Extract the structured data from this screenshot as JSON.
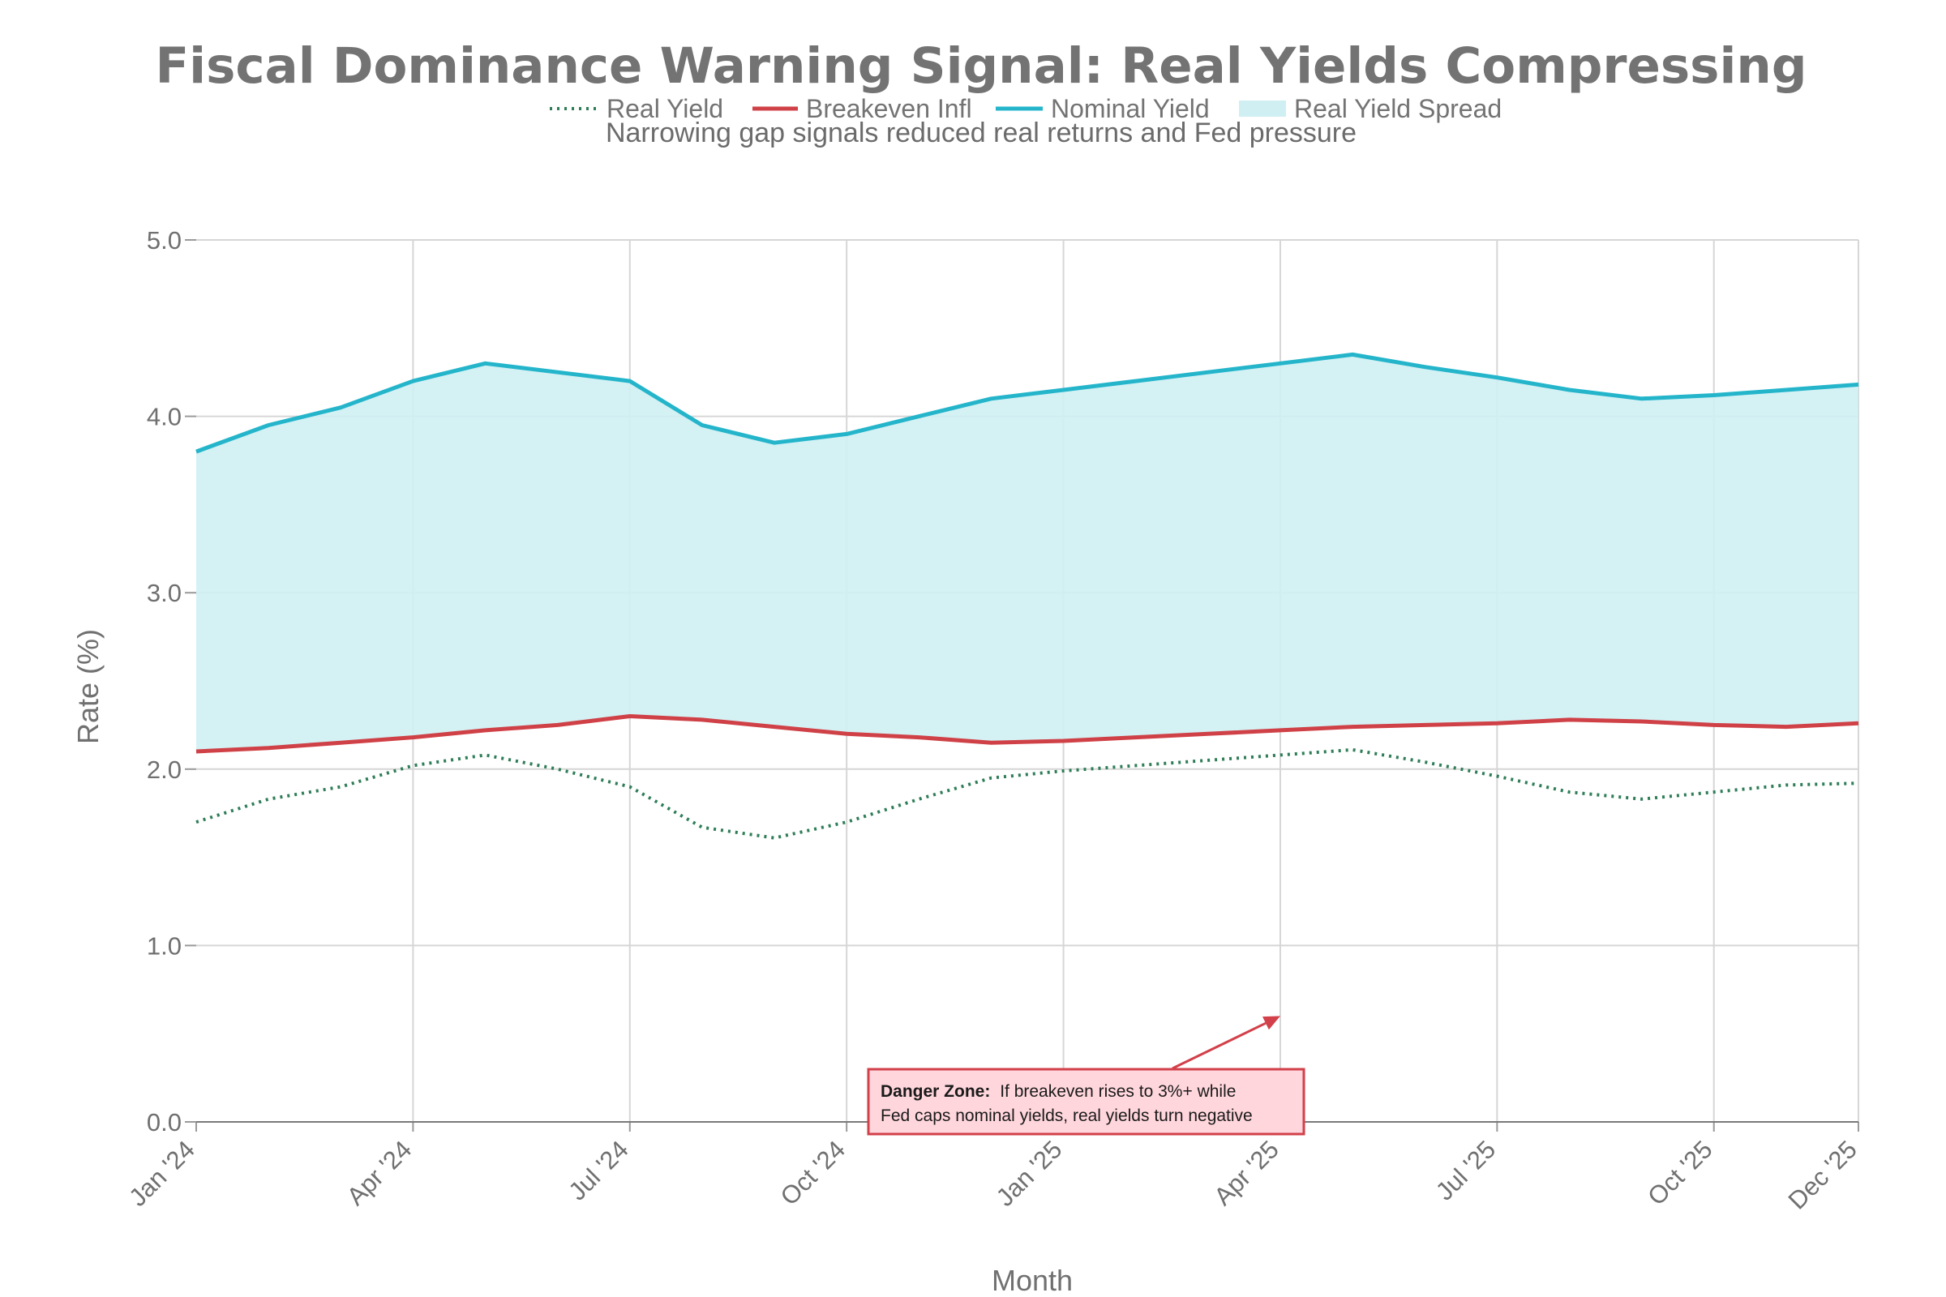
{
  "chart_data": {
    "type": "line",
    "title": "Fiscal Dominance Warning Signal: Real Yields Compressing",
    "subtitle": "Narrowing gap signals reduced real returns and Fed pressure",
    "xlabel": "Month",
    "ylabel": "Rate (%)",
    "ylim": [
      0,
      5
    ],
    "yticks": [
      "0.0",
      "1.0",
      "2.0",
      "3.0",
      "4.0",
      "5.0"
    ],
    "ytick_values": [
      0,
      1,
      2,
      3,
      4,
      5
    ],
    "grid": true,
    "legend_position": "top-center",
    "months": [
      "2024-01",
      "2024-02",
      "2024-03",
      "2024-04",
      "2024-05",
      "2024-06",
      "2024-07",
      "2024-08",
      "2024-09",
      "2024-10",
      "2024-11",
      "2024-12",
      "2025-01",
      "2025-02",
      "2025-03",
      "2025-04",
      "2025-05",
      "2025-06",
      "2025-07",
      "2025-08",
      "2025-09",
      "2025-10",
      "2025-11",
      "2025-12"
    ],
    "xtick_labels": [
      "Jan '24",
      "Apr '24",
      "Jul '24",
      "Oct '24",
      "Jan '25",
      "Apr '25",
      "Jul '25",
      "Oct '25",
      "Dec '25"
    ],
    "xtick_indices": [
      0,
      3,
      6,
      9,
      12,
      15,
      18,
      21,
      23
    ],
    "series": [
      {
        "name": "Real Yield",
        "style": "dotted",
        "color": "#2e7d57",
        "values": [
          1.7,
          1.83,
          1.9,
          2.02,
          2.08,
          2.0,
          1.9,
          1.67,
          1.61,
          1.7,
          1.83,
          1.95,
          1.99,
          2.02,
          2.05,
          2.08,
          2.11,
          2.04,
          1.96,
          1.87,
          1.83,
          1.87,
          1.91,
          1.92
        ]
      },
      {
        "name": "Breakeven Infl",
        "style": "solid",
        "color": "#cf4146",
        "values": [
          2.1,
          2.12,
          2.15,
          2.18,
          2.22,
          2.25,
          2.3,
          2.28,
          2.24,
          2.2,
          2.18,
          2.15,
          2.16,
          2.18,
          2.2,
          2.22,
          2.24,
          2.25,
          2.26,
          2.28,
          2.27,
          2.25,
          2.24,
          2.26
        ]
      },
      {
        "name": "Nominal Yield",
        "style": "solid",
        "color": "#24b5cb",
        "values": [
          3.8,
          3.95,
          4.05,
          4.2,
          4.3,
          4.25,
          4.2,
          3.95,
          3.85,
          3.9,
          4.0,
          4.1,
          4.15,
          4.2,
          4.25,
          4.3,
          4.35,
          4.28,
          4.22,
          4.15,
          4.1,
          4.12,
          4.15,
          4.18
        ]
      }
    ],
    "fill": {
      "name": "Real Yield Spread",
      "color": "#cfeff3",
      "between": [
        "Breakeven Infl",
        "Nominal Yield"
      ]
    },
    "annotation": {
      "bold_text": "Danger Zone:",
      "line1": "If breakeven rises to 3%+ while",
      "line2": "Fed caps nominal yields, real yields turn negative",
      "arrow_target_month_index": 15,
      "arrow_target_value": 0.6,
      "border_color": "#d2404a",
      "background_color": "#ffd6dc"
    }
  }
}
